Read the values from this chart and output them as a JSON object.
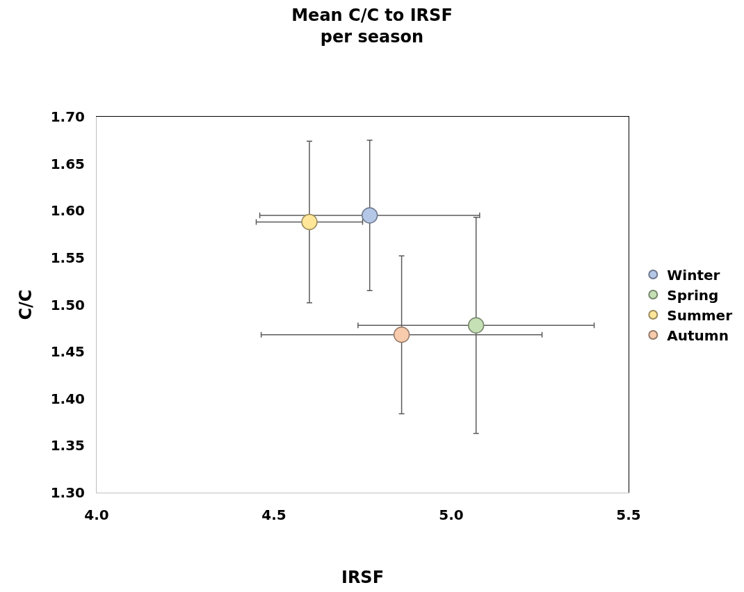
{
  "chart_data": {
    "type": "scatter",
    "title": "Mean C/C to IRSF\nper season",
    "xlabel": "IRSF",
    "ylabel": "C/C",
    "series": [
      {
        "name": "Winter",
        "color": "#b4c7e7",
        "x": [
          4.77
        ],
        "values": [
          1.595
        ],
        "errors": [
          0.08
        ],
        "xerrors": [
          0.31
        ]
      },
      {
        "name": "Spring",
        "color": "#c5e0b4",
        "x": [
          5.07
        ],
        "values": [
          1.478
        ],
        "errors": [
          0.115
        ],
        "xerrors": [
          0.333
        ]
      },
      {
        "name": "Summer",
        "color": "#ffe699",
        "x": [
          4.6
        ],
        "values": [
          1.588
        ],
        "errors": [
          0.086
        ],
        "xerrors": [
          0.15
        ]
      },
      {
        "name": "Autumn",
        "color": "#f8cbad",
        "x": [
          4.86
        ],
        "values": [
          1.468
        ],
        "errors": [
          0.084
        ],
        "xerrors": [
          0.396
        ]
      }
    ],
    "xlim": [
      4.0,
      5.5
    ],
    "xticks": [
      {
        "value": 4,
        "label": "4.0"
      },
      4.5,
      {
        "value": 5,
        "label": "5.0"
      },
      5.5
    ],
    "ylim": [
      1.3,
      1.7
    ],
    "yticks": [
      {
        "value": 1.3,
        "label": "1.30"
      },
      1.35,
      {
        "value": 1.4,
        "label": "1.40"
      },
      1.45,
      {
        "value": 1.5,
        "label": "1.50"
      },
      1.55,
      {
        "value": 1.6,
        "label": "1.60"
      },
      1.65,
      {
        "value": 1.7,
        "label": "1.70"
      }
    ],
    "legend": "right",
    "marker": "circle"
  }
}
